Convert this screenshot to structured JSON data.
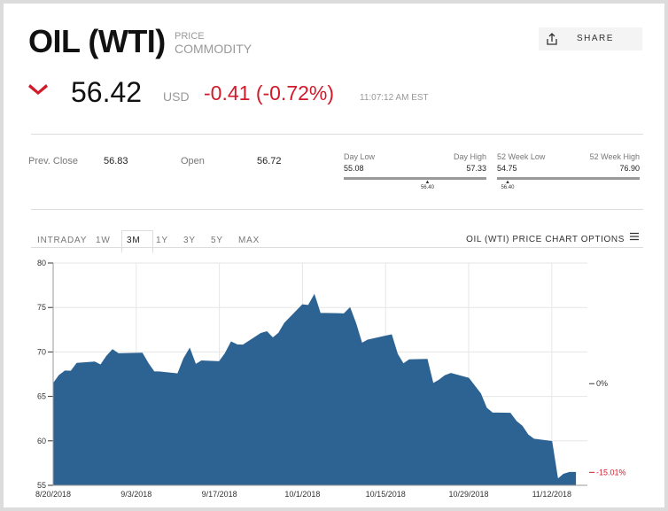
{
  "header": {
    "title": "OIL (WTI)",
    "subtitle": [
      "PRICE",
      "COMMODITY"
    ],
    "share": "SHARE",
    "price": "56.42",
    "currency": "USD",
    "change": "-0.41 (-0.72%)",
    "time": "11:07:12 AM EST"
  },
  "stats": {
    "prev_close_label": "Prev. Close",
    "prev_close": "56.83",
    "open_label": "Open",
    "open": "56.72",
    "day_low_label": "Day Low",
    "day_low": "55.08",
    "day_high_label": "Day High",
    "day_high": "57.33",
    "day_current": "56.40",
    "week52_low_label": "52 Week Low",
    "week52_low": "54.75",
    "week52_high_label": "52 Week High",
    "week52_high": "76.90",
    "week52_current": "56.40"
  },
  "tabs": [
    "INTRADAY",
    "1W",
    "3M",
    "1Y",
    "3Y",
    "5Y",
    "MAX"
  ],
  "selected_tab": "3M",
  "chart_options": "OIL (WTI) PRICE CHART OPTIONS",
  "chart_data": {
    "type": "area",
    "color": "#2d6393",
    "x": [
      "8/20/2018",
      "8/21/2018",
      "8/22/2018",
      "8/23/2018",
      "8/24/2018",
      "8/27/2018",
      "8/28/2018",
      "8/29/2018",
      "8/30/2018",
      "8/31/2018",
      "9/4/2018",
      "9/5/2018",
      "9/6/2018",
      "9/7/2018",
      "9/10/2018",
      "9/11/2018",
      "9/12/2018",
      "9/13/2018",
      "9/14/2018",
      "9/17/2018",
      "9/18/2018",
      "9/19/2018",
      "9/20/2018",
      "9/21/2018",
      "9/24/2018",
      "9/25/2018",
      "9/26/2018",
      "9/27/2018",
      "9/28/2018",
      "10/1/2018",
      "10/2/2018",
      "10/3/2018",
      "10/4/2018",
      "10/5/2018",
      "10/8/2018",
      "10/9/2018",
      "10/10/2018",
      "10/11/2018",
      "10/12/2018",
      "10/15/2018",
      "10/16/2018",
      "10/17/2018",
      "10/18/2018",
      "10/19/2018",
      "10/22/2018",
      "10/23/2018",
      "10/24/2018",
      "10/25/2018",
      "10/26/2018",
      "10/29/2018",
      "10/30/2018",
      "10/31/2018",
      "11/1/2018",
      "11/2/2018",
      "11/5/2018",
      "11/6/2018",
      "11/7/2018",
      "11/8/2018",
      "11/9/2018",
      "11/12/2018",
      "11/13/2018",
      "11/14/2018",
      "11/15/2018",
      "11/16/2018"
    ],
    "values": [
      66.43,
      67.35,
      67.86,
      67.83,
      68.72,
      68.87,
      68.53,
      69.51,
      70.25,
      69.8,
      69.87,
      68.72,
      67.77,
      67.75,
      67.54,
      69.25,
      70.37,
      68.59,
      68.99,
      68.91,
      69.85,
      71.12,
      70.8,
      70.78,
      72.08,
      72.28,
      71.57,
      72.12,
      73.25,
      75.3,
      75.23,
      76.41,
      74.33,
      74.34,
      74.29,
      74.96,
      73.17,
      70.97,
      71.34,
      71.78,
      71.92,
      69.75,
      68.65,
      69.12,
      69.17,
      66.43,
      66.82,
      67.33,
      67.59,
      67.04,
      66.18,
      65.31,
      63.69,
      63.14,
      63.1,
      62.21,
      61.67,
      60.67,
      60.19,
      59.93,
      55.69,
      56.25,
      56.46,
      56.46
    ],
    "xlim": [
      "8/20/2018",
      "11/18/2018"
    ],
    "xticks": [
      "8/20/2018",
      "9/3/2018",
      "9/17/2018",
      "10/1/2018",
      "10/15/2018",
      "10/29/2018",
      "11/12/2018"
    ],
    "ylim": [
      55,
      80
    ],
    "yticks": [
      55,
      60,
      65,
      70,
      75,
      80
    ],
    "grid": true,
    "annotations": [
      "0%",
      "-15.01%"
    ]
  }
}
